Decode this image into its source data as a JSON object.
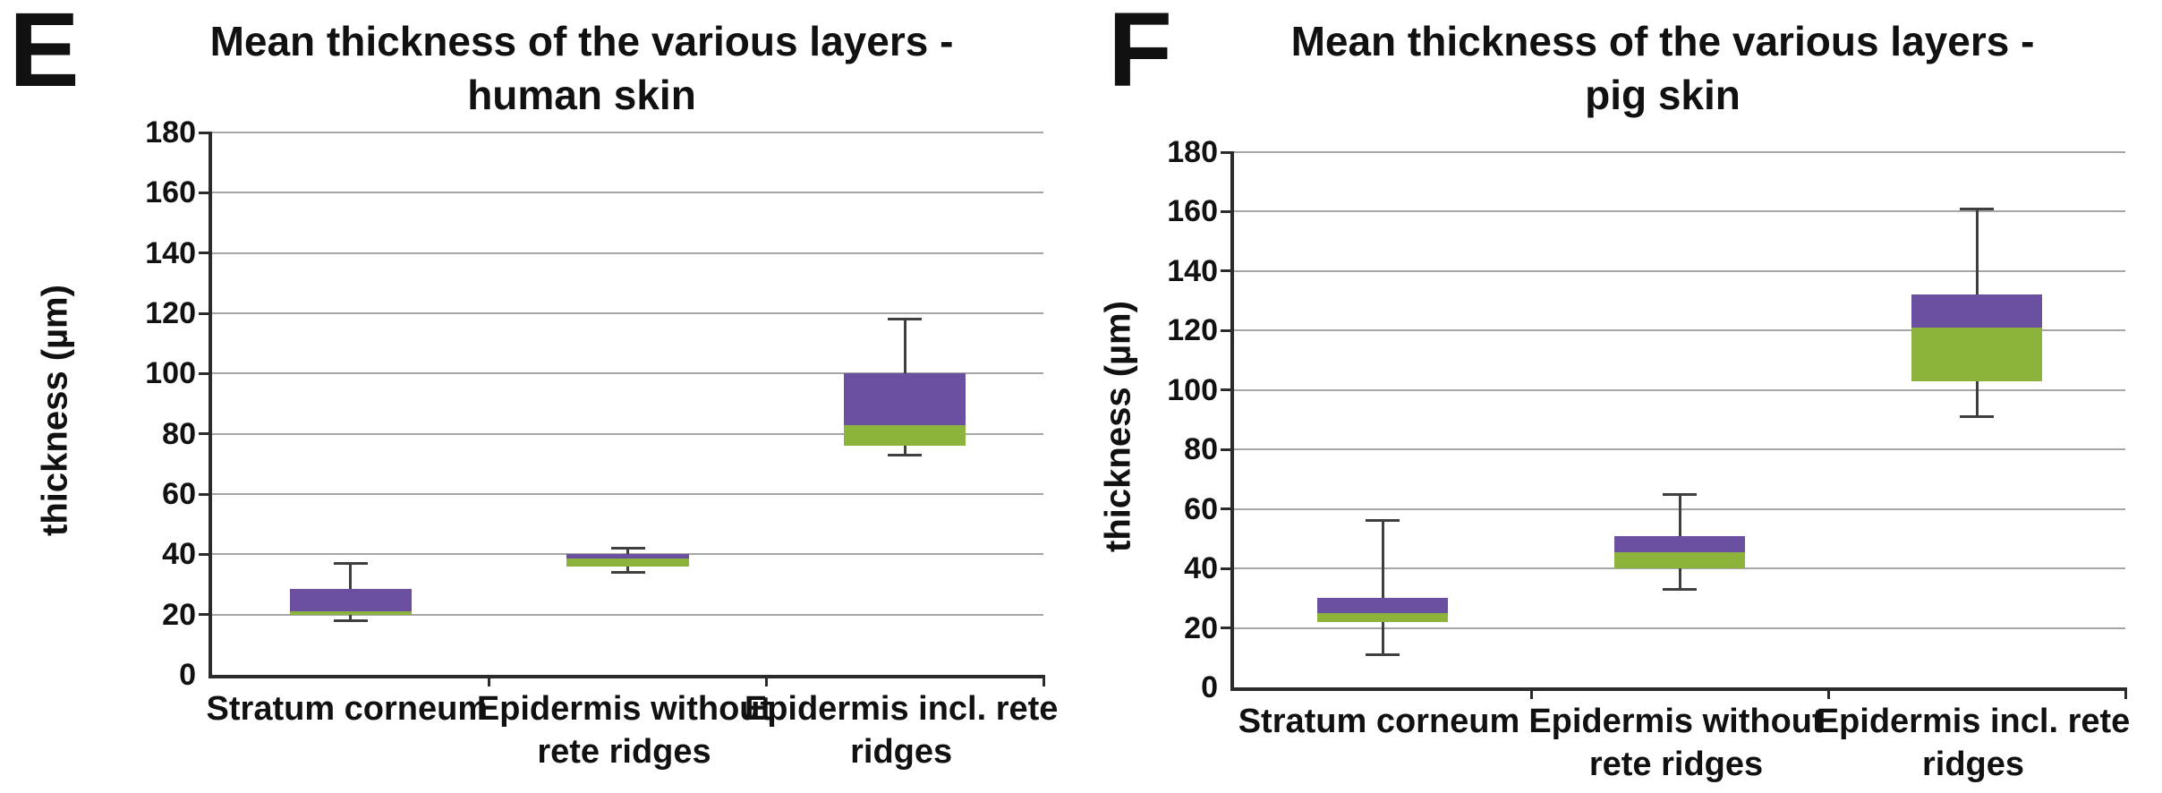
{
  "panels": [
    {
      "letter": "E"
    },
    {
      "letter": "F"
    }
  ],
  "chart_data": [
    {
      "type": "boxplot",
      "panel_letter": "E",
      "title": "Mean thickness of the various layers - human skin",
      "title_line1": "Mean thickness of the various layers -",
      "title_line2": "human skin",
      "ylabel": "thickness (µm)",
      "ylim": [
        0,
        180
      ],
      "ytick_interval": 20,
      "yticks": [
        0,
        20,
        40,
        60,
        80,
        100,
        120,
        140,
        160,
        180
      ],
      "grid": true,
      "legend": "none",
      "colors": {
        "box_lower_q1_to_median": "#8cb43c",
        "box_upper_median_to_q3": "#6b4fa0",
        "whisker": "#3f3f3f"
      },
      "categories": [
        "Stratum corneum",
        "Epidermis without rete ridges",
        "Epidermis incl. rete ridges"
      ],
      "category_label_lines": [
        [
          "Stratum corneum"
        ],
        [
          "Epidermis without",
          "rete ridges"
        ],
        [
          "Epidermis incl. rete",
          "ridges"
        ]
      ],
      "boxes": [
        {
          "category": "Stratum corneum",
          "whisker_low": 18,
          "q1": 20,
          "median": 21,
          "q3": 28.5,
          "whisker_high": 37
        },
        {
          "category": "Epidermis without rete ridges",
          "whisker_low": 34,
          "q1": 36,
          "median": 38.5,
          "q3": 40,
          "whisker_high": 42
        },
        {
          "category": "Epidermis incl. rete ridges",
          "whisker_low": 73,
          "q1": 76,
          "median": 83,
          "q3": 100,
          "whisker_high": 118
        }
      ]
    },
    {
      "type": "boxplot",
      "panel_letter": "F",
      "title": "Mean thickness of the various layers - pig skin",
      "title_line1": "Mean thickness of the various layers -",
      "title_line2": "pig skin",
      "ylabel": "thickness (µm)",
      "ylim": [
        0,
        180
      ],
      "ytick_interval": 20,
      "yticks": [
        0,
        20,
        40,
        60,
        80,
        100,
        120,
        140,
        160,
        180
      ],
      "grid": true,
      "legend": "none",
      "colors": {
        "box_lower_q1_to_median": "#8cb43c",
        "box_upper_median_to_q3": "#6b4fa0",
        "whisker": "#3f3f3f"
      },
      "categories": [
        "Stratum corneum",
        "Epidermis without rete ridges",
        "Epidermis incl. rete ridges"
      ],
      "category_label_lines": [
        [
          "Stratum corneum"
        ],
        [
          "Epidermis without",
          "rete ridges"
        ],
        [
          "Epidermis incl. rete",
          "ridges"
        ]
      ],
      "boxes": [
        {
          "category": "Stratum corneum",
          "whisker_low": 11,
          "q1": 22,
          "median": 25,
          "q3": 30,
          "whisker_high": 56
        },
        {
          "category": "Epidermis without rete ridges",
          "whisker_low": 33,
          "q1": 40,
          "median": 45.5,
          "q3": 51,
          "whisker_high": 65
        },
        {
          "category": "Epidermis incl. rete ridges",
          "whisker_low": 91,
          "q1": 103,
          "median": 121,
          "q3": 132,
          "whisker_high": 161
        }
      ]
    }
  ]
}
